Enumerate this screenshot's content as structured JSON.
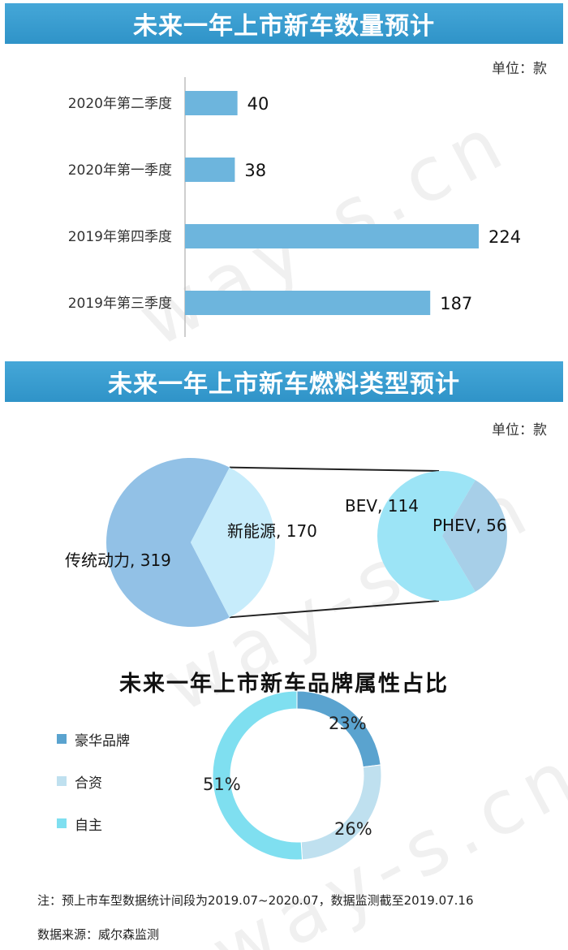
{
  "section1": {
    "title": "未来一年上市新车数量预计",
    "unit": "单位：款"
  },
  "section2": {
    "title": "未来一年上市新车燃料类型预计",
    "unit": "单位：款"
  },
  "section3": {
    "title": "未来一年上市新车品牌属性占比"
  },
  "footer": {
    "note": "注：预上市车型数据统计间段为2019.07~2020.07，数据监测截至2019.07.16",
    "source": "数据来源：威尔森监测"
  },
  "watermark": "way-s.cn",
  "colors": {
    "banner": "#3a9fd2",
    "bar": "#6db5dd",
    "pie_traditional": "#92c1e6",
    "pie_new_energy": "#c7ecfb",
    "pie_bev": "#9ce4f6",
    "pie_phev": "#a7cfe8",
    "donut_luxury": "#5aa3cf",
    "donut_joint": "#bfe0ef",
    "donut_domestic": "#7fdff0"
  },
  "chart_data": [
    {
      "type": "bar",
      "orientation": "horizontal",
      "title": "未来一年上市新车数量预计",
      "unit": "单位：款",
      "categories": [
        "2020年第二季度",
        "2020年第一季度",
        "2019年第四季度",
        "2019年第三季度"
      ],
      "values": [
        40,
        38,
        224,
        187
      ],
      "value_labels": [
        "40",
        "38",
        "224",
        "187"
      ],
      "xlim": [
        0,
        240
      ]
    },
    {
      "type": "pie",
      "title": "未来一年上市新车燃料类型预计",
      "unit": "单位：款",
      "slices": [
        {
          "label": "传统动力, 319",
          "name": "传统动力",
          "value": 319
        },
        {
          "label": "新能源, 170",
          "name": "新能源",
          "value": 170
        }
      ],
      "breakdown": {
        "of": "新能源",
        "slices": [
          {
            "label": "BEV, 114",
            "name": "BEV",
            "value": 114
          },
          {
            "label": "PHEV, 56",
            "name": "PHEV",
            "value": 56
          }
        ]
      }
    },
    {
      "type": "pie",
      "subtype": "donut",
      "title": "未来一年上市新车品牌属性占比",
      "legend_position": "left",
      "slices": [
        {
          "name": "豪华品牌",
          "value": 23,
          "label": "23%"
        },
        {
          "name": "合资",
          "value": 26,
          "label": "26%"
        },
        {
          "name": "自主",
          "value": 51,
          "label": "51%"
        }
      ]
    }
  ]
}
